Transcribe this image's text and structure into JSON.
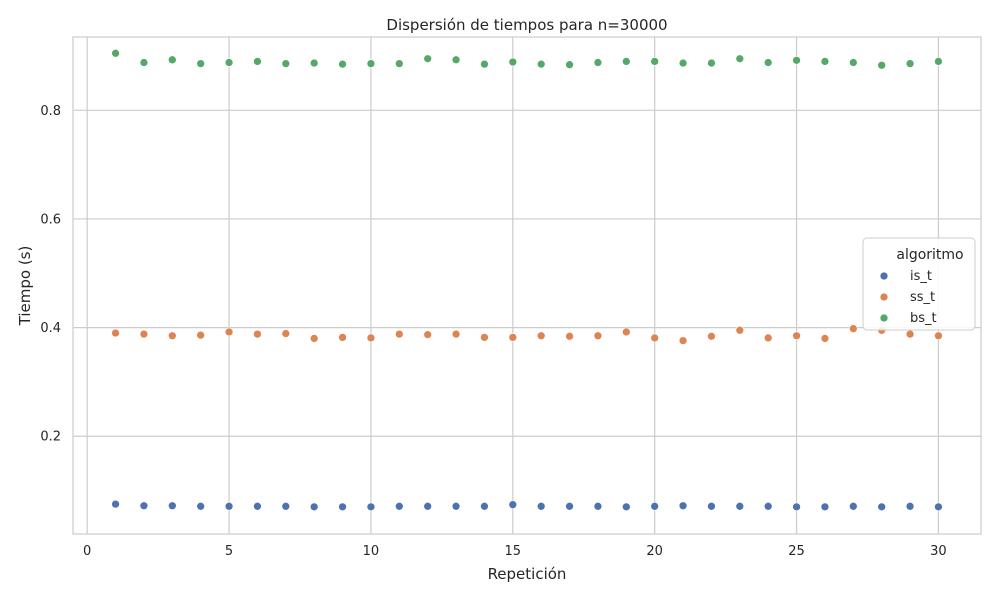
{
  "chart_data": {
    "type": "scatter",
    "title": "Dispersión de tiempos para n=30000",
    "xlabel": "Repetición",
    "ylabel": "Tiempo (s)",
    "xlim": [
      -0.5,
      31.5
    ],
    "ylim": [
      0.02,
      0.935
    ],
    "xticks": [
      0,
      5,
      10,
      15,
      20,
      25,
      30
    ],
    "yticks": [
      0.2,
      0.4,
      0.6,
      0.8
    ],
    "grid": true,
    "legend": {
      "title": "algoritmo",
      "placement": "center-right"
    },
    "x": [
      1,
      2,
      3,
      4,
      5,
      6,
      7,
      8,
      9,
      10,
      11,
      12,
      13,
      14,
      15,
      16,
      17,
      18,
      19,
      20,
      21,
      22,
      23,
      24,
      25,
      26,
      27,
      28,
      29,
      30
    ],
    "series": [
      {
        "name": "is_t",
        "color": "#4c72b0",
        "values": [
          0.075,
          0.072,
          0.072,
          0.071,
          0.071,
          0.071,
          0.071,
          0.07,
          0.07,
          0.07,
          0.071,
          0.071,
          0.071,
          0.071,
          0.074,
          0.071,
          0.071,
          0.071,
          0.07,
          0.071,
          0.072,
          0.071,
          0.071,
          0.071,
          0.07,
          0.07,
          0.071,
          0.07,
          0.071,
          0.07
        ]
      },
      {
        "name": "ss_t",
        "color": "#dd8452",
        "values": [
          0.39,
          0.388,
          0.385,
          0.386,
          0.392,
          0.388,
          0.389,
          0.38,
          0.382,
          0.381,
          0.388,
          0.387,
          0.388,
          0.382,
          0.382,
          0.385,
          0.384,
          0.385,
          0.392,
          0.381,
          0.376,
          0.384,
          0.395,
          0.381,
          0.385,
          0.38,
          0.398,
          0.395,
          0.388,
          0.385
        ]
      },
      {
        "name": "bs_t",
        "color": "#55a868",
        "values": [
          0.905,
          0.888,
          0.893,
          0.886,
          0.888,
          0.89,
          0.886,
          0.887,
          0.885,
          0.886,
          0.886,
          0.895,
          0.893,
          0.885,
          0.889,
          0.885,
          0.884,
          0.888,
          0.89,
          0.89,
          0.887,
          0.887,
          0.895,
          0.888,
          0.892,
          0.89,
          0.888,
          0.883,
          0.886,
          0.89
        ]
      }
    ]
  }
}
